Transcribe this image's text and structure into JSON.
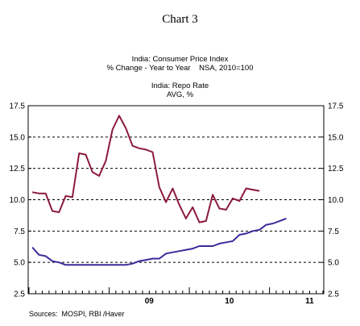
{
  "chart_title": "Chart 3",
  "legend": {
    "cpi": {
      "line1": "India: Consumer Price Index",
      "line2": "% Change - Year to Year    NSA, 2010=100",
      "color": "#8b1a3a"
    },
    "repo": {
      "line1": "India: Repo Rate",
      "line2": "AVG, %",
      "color": "#3a2a9a"
    }
  },
  "source": "Sources:  MOSPI, RBI /Haver",
  "chart_data": {
    "type": "line",
    "title": "Chart 3",
    "ylim": [
      2.5,
      17.5
    ],
    "yticks": [
      "17.5",
      "15.0",
      "12.5",
      "10.0",
      "7.5",
      "5.0",
      "2.5"
    ],
    "ytick_values": [
      17.5,
      15.0,
      12.5,
      10.0,
      7.5,
      5.0,
      2.5
    ],
    "xticks": [
      {
        "label": "09",
        "month_index": 12
      },
      {
        "label": "10",
        "month_index": 24
      },
      {
        "label": "11",
        "month_index": 36
      }
    ],
    "grid": "horizontal dashed",
    "series": [
      {
        "name": "India: Consumer Price Index",
        "color": "#8b1a3a",
        "start": "Jan 2008",
        "values": [
          10.6,
          10.5,
          10.5,
          9.1,
          9.0,
          10.3,
          10.2,
          13.7,
          13.6,
          12.2,
          11.9,
          13.1,
          15.6,
          16.7,
          15.7,
          14.3,
          14.1,
          14.0,
          13.8,
          11.0,
          9.8,
          10.9,
          9.6,
          8.5,
          9.4,
          8.2,
          8.3,
          10.4,
          9.3,
          9.2,
          10.1,
          9.9,
          10.9,
          10.8,
          10.7
        ]
      },
      {
        "name": "India: Repo Rate",
        "color": "#3a2a9a",
        "start": "Jan 2008",
        "values": [
          6.2,
          5.6,
          5.5,
          5.1,
          5.0,
          4.8,
          4.8,
          4.8,
          4.8,
          4.8,
          4.8,
          4.8,
          4.8,
          4.8,
          4.8,
          4.9,
          5.1,
          5.2,
          5.3,
          5.3,
          5.7,
          5.8,
          5.9,
          6.0,
          6.1,
          6.3,
          6.3,
          6.3,
          6.5,
          6.6,
          6.7,
          7.2,
          7.3,
          7.5,
          7.6,
          8.0,
          8.1,
          8.3,
          8.5
        ]
      }
    ]
  }
}
